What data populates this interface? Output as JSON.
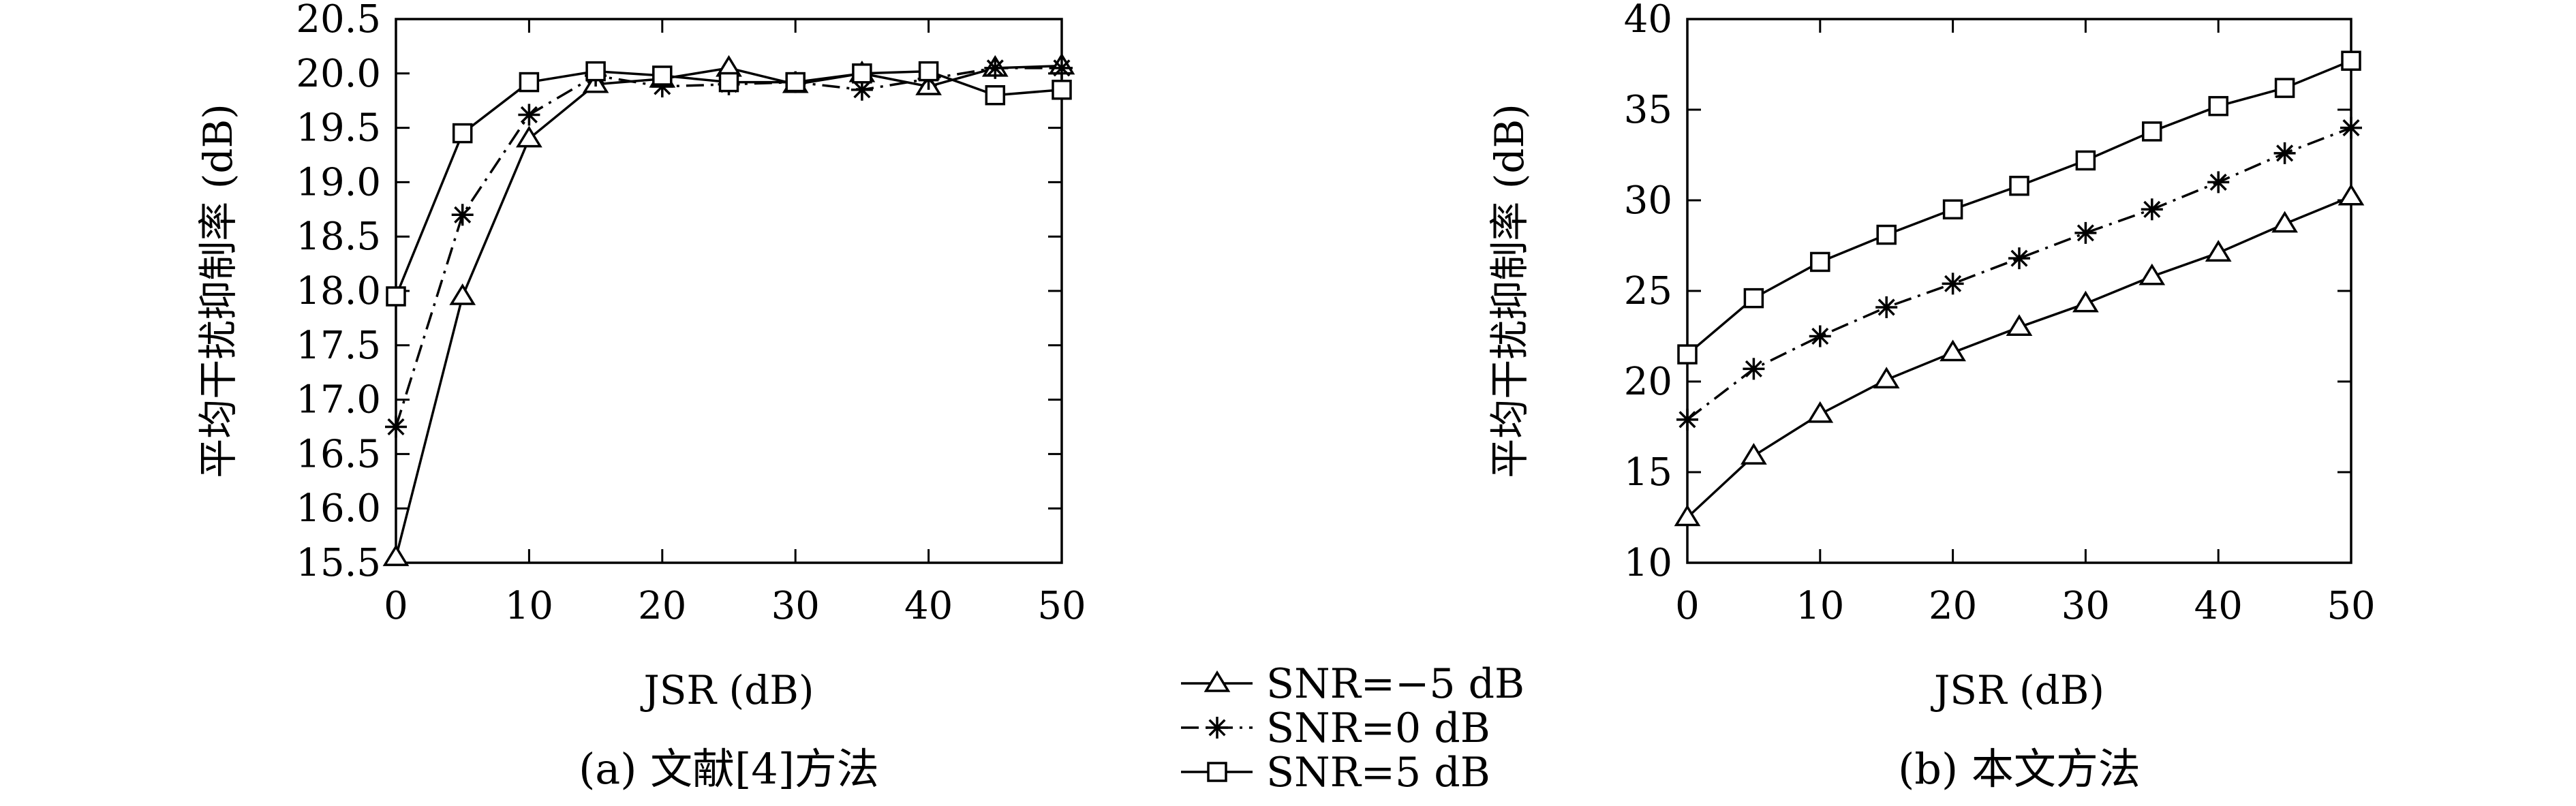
{
  "chart_data": [
    {
      "type": "line",
      "caption": "(a) 文献[4]方法",
      "xlabel": "JSR (dB)",
      "ylabel": "平均干扰抑制率 (dB)",
      "xlim": [
        0,
        50
      ],
      "ylim": [
        15.5,
        20.5
      ],
      "xticks": [
        0,
        10,
        20,
        30,
        40,
        50
      ],
      "yticks": [
        15.5,
        16.0,
        16.5,
        17.0,
        17.5,
        18.0,
        18.5,
        19.0,
        19.5,
        20.0,
        20.5
      ],
      "ytick_labels": [
        "15.5",
        "16.0",
        "16.5",
        "17.0",
        "17.5",
        "18.0",
        "18.5",
        "19.0",
        "19.5",
        "20.0",
        "20.5"
      ],
      "x": [
        0,
        5,
        10,
        15,
        20,
        25,
        30,
        35,
        40,
        45,
        50
      ],
      "series": [
        {
          "name": "SNR=−5 dB",
          "marker": "triangle",
          "dash": "solid",
          "values": [
            15.55,
            17.95,
            19.4,
            19.9,
            19.95,
            20.05,
            19.9,
            20.0,
            19.88,
            20.05,
            20.07
          ]
        },
        {
          "name": "SNR=0 dB",
          "marker": "star",
          "dash": "dashdot",
          "values": [
            16.75,
            18.7,
            19.62,
            19.98,
            19.88,
            19.9,
            19.92,
            19.85,
            19.95,
            20.05,
            20.05
          ]
        },
        {
          "name": "SNR=5 dB",
          "marker": "square",
          "dash": "solid",
          "values": [
            17.95,
            19.45,
            19.92,
            20.02,
            19.98,
            19.92,
            19.92,
            20.0,
            20.02,
            19.8,
            19.85
          ]
        }
      ]
    },
    {
      "type": "line",
      "caption": "(b) 本文方法",
      "xlabel": "JSR (dB)",
      "ylabel": "平均干扰抑制率 (dB)",
      "xlim": [
        0,
        50
      ],
      "ylim": [
        10,
        40
      ],
      "xticks": [
        0,
        10,
        20,
        30,
        40,
        50
      ],
      "yticks": [
        10,
        15,
        20,
        25,
        30,
        35,
        40
      ],
      "ytick_labels": [
        "10",
        "15",
        "20",
        "25",
        "30",
        "35",
        "40"
      ],
      "x": [
        0,
        5,
        10,
        15,
        20,
        25,
        30,
        35,
        40,
        45,
        50
      ],
      "series": [
        {
          "name": "SNR=−5 dB",
          "marker": "triangle",
          "dash": "solid",
          "values": [
            12.5,
            15.9,
            18.2,
            20.1,
            21.6,
            23.0,
            24.3,
            25.8,
            27.1,
            28.7,
            30.2
          ]
        },
        {
          "name": "SNR=0 dB",
          "marker": "star",
          "dash": "dashdot",
          "values": [
            17.9,
            20.7,
            22.5,
            24.1,
            25.4,
            26.8,
            28.2,
            29.5,
            31.0,
            32.6,
            34.0
          ]
        },
        {
          "name": "SNR=5 dB",
          "marker": "square",
          "dash": "solid",
          "values": [
            21.5,
            24.6,
            26.6,
            28.1,
            29.5,
            30.8,
            32.2,
            33.8,
            35.2,
            36.2,
            37.7
          ]
        }
      ]
    }
  ],
  "legend": {
    "placement": "bottom-center",
    "entries": [
      {
        "label": "SNR=−5 dB",
        "marker": "triangle",
        "dash": "solid"
      },
      {
        "label": "SNR=0 dB",
        "marker": "star",
        "dash": "dashdot"
      },
      {
        "label": "SNR=5 dB",
        "marker": "square",
        "dash": "solid"
      }
    ]
  }
}
